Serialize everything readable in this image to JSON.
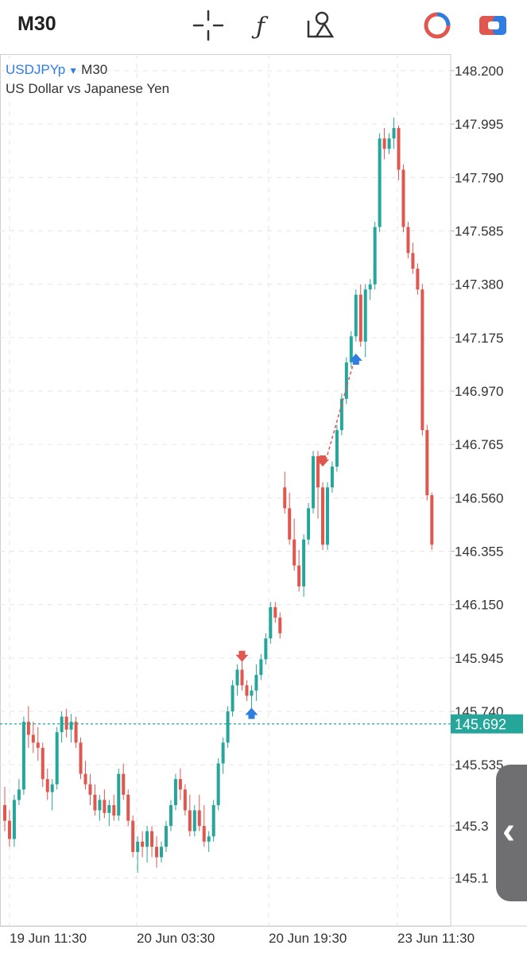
{
  "toolbar": {
    "timeframe": "M30",
    "icons": [
      "crosshair-icon",
      "function-icon",
      "objects-icon",
      "trading-icon",
      "switch-icon"
    ]
  },
  "header": {
    "symbol": "USDJPYp",
    "timeframe": "M30",
    "description": "US Dollar vs Japanese Yen"
  },
  "colors": {
    "bull": "#26a69a",
    "bear": "#e0574f",
    "buy_marker": "#2f7de1",
    "sell_marker": "#e0574f"
  },
  "chart_data": {
    "type": "candlestick",
    "symbol": "USDJPYp",
    "timeframe": "M30",
    "ylim": [
      145.05,
      148.25
    ],
    "y_ticks": [
      "148.200",
      "147.995",
      "147.790",
      "147.585",
      "147.380",
      "147.175",
      "146.970",
      "146.765",
      "146.560",
      "146.355",
      "146.150",
      "145.945",
      "145.740",
      "145.535",
      "145.3",
      "145.1"
    ],
    "x_labels": [
      "19 Jun 11:30",
      "20 Jun 03:30",
      "20 Jun 19:30",
      "23 Jun 11:30"
    ],
    "current_price": "145.692",
    "candles": [
      [
        145.38,
        145.45,
        145.28,
        145.32
      ],
      [
        145.32,
        145.36,
        145.22,
        145.25
      ],
      [
        145.25,
        145.42,
        145.22,
        145.4
      ],
      [
        145.4,
        145.48,
        145.38,
        145.44
      ],
      [
        145.44,
        145.72,
        145.42,
        145.7
      ],
      [
        145.7,
        145.76,
        145.6,
        145.65
      ],
      [
        145.65,
        145.7,
        145.58,
        145.62
      ],
      [
        145.62,
        145.68,
        145.55,
        145.6
      ],
      [
        145.6,
        145.62,
        145.45,
        145.48
      ],
      [
        145.48,
        145.52,
        145.4,
        145.43
      ],
      [
        145.43,
        145.48,
        145.36,
        145.46
      ],
      [
        145.46,
        145.68,
        145.44,
        145.66
      ],
      [
        145.66,
        145.74,
        145.62,
        145.72
      ],
      [
        145.72,
        145.75,
        145.64,
        145.67
      ],
      [
        145.67,
        145.73,
        145.62,
        145.7
      ],
      [
        145.7,
        145.72,
        145.6,
        145.62
      ],
      [
        145.62,
        145.64,
        145.48,
        145.5
      ],
      [
        145.5,
        145.55,
        145.44,
        145.46
      ],
      [
        145.46,
        145.5,
        145.38,
        145.42
      ],
      [
        145.42,
        145.46,
        145.34,
        145.36
      ],
      [
        145.36,
        145.42,
        145.32,
        145.4
      ],
      [
        145.4,
        145.44,
        145.33,
        145.35
      ],
      [
        145.35,
        145.4,
        145.3,
        145.38
      ],
      [
        145.38,
        145.42,
        145.32,
        145.34
      ],
      [
        145.34,
        145.52,
        145.32,
        145.5
      ],
      [
        145.5,
        145.54,
        145.4,
        145.42
      ],
      [
        145.42,
        145.44,
        145.3,
        145.32
      ],
      [
        145.32,
        145.34,
        145.18,
        145.2
      ],
      [
        145.2,
        145.26,
        145.12,
        145.24
      ],
      [
        145.24,
        145.28,
        145.18,
        145.22
      ],
      [
        145.22,
        145.3,
        145.16,
        145.28
      ],
      [
        145.28,
        145.3,
        145.18,
        145.22
      ],
      [
        145.22,
        145.26,
        145.14,
        145.18
      ],
      [
        145.18,
        145.24,
        145.16,
        145.22
      ],
      [
        145.22,
        145.32,
        145.2,
        145.3
      ],
      [
        145.3,
        145.4,
        145.28,
        145.38
      ],
      [
        145.38,
        145.5,
        145.36,
        145.48
      ],
      [
        145.48,
        145.52,
        145.4,
        145.44
      ],
      [
        145.44,
        145.46,
        145.34,
        145.36
      ],
      [
        145.36,
        145.42,
        145.26,
        145.28
      ],
      [
        145.28,
        145.38,
        145.26,
        145.36
      ],
      [
        145.36,
        145.42,
        145.28,
        145.3
      ],
      [
        145.3,
        145.38,
        145.22,
        145.24
      ],
      [
        145.24,
        145.28,
        145.2,
        145.26
      ],
      [
        145.26,
        145.4,
        145.24,
        145.38
      ],
      [
        145.38,
        145.56,
        145.36,
        145.54
      ],
      [
        145.54,
        145.64,
        145.5,
        145.62
      ],
      [
        145.62,
        145.76,
        145.6,
        145.74
      ],
      [
        145.74,
        145.86,
        145.72,
        145.84
      ],
      [
        145.84,
        145.92,
        145.8,
        145.9
      ],
      [
        145.9,
        145.94,
        145.82,
        145.84
      ],
      [
        145.84,
        145.86,
        145.78,
        145.8
      ],
      [
        145.8,
        145.84,
        145.74,
        145.82
      ],
      [
        145.82,
        145.92,
        145.78,
        145.88
      ],
      [
        145.88,
        145.96,
        145.86,
        145.94
      ],
      [
        145.94,
        146.04,
        145.92,
        146.02
      ],
      [
        146.02,
        146.16,
        146.0,
        146.14
      ],
      [
        146.14,
        146.16,
        146.08,
        146.1
      ],
      [
        146.1,
        146.12,
        146.02,
        146.04
      ],
      [
        146.6,
        146.66,
        146.5,
        146.52
      ],
      [
        146.52,
        146.58,
        146.38,
        146.4
      ],
      [
        146.4,
        146.48,
        146.28,
        146.3
      ],
      [
        146.3,
        146.36,
        146.2,
        146.22
      ],
      [
        146.22,
        146.42,
        146.18,
        146.4
      ],
      [
        146.4,
        146.54,
        146.38,
        146.52
      ],
      [
        146.52,
        146.74,
        146.5,
        146.72
      ],
      [
        146.72,
        146.74,
        146.48,
        146.6
      ],
      [
        146.6,
        146.62,
        146.36,
        146.38
      ],
      [
        146.38,
        146.62,
        146.36,
        146.6
      ],
      [
        146.6,
        146.7,
        146.58,
        146.68
      ],
      [
        146.68,
        146.84,
        146.66,
        146.82
      ],
      [
        146.82,
        146.96,
        146.8,
        146.94
      ],
      [
        146.94,
        147.1,
        146.92,
        147.08
      ],
      [
        147.08,
        147.2,
        147.06,
        147.18
      ],
      [
        147.18,
        147.36,
        147.16,
        147.34
      ],
      [
        147.34,
        147.38,
        147.14,
        147.16
      ],
      [
        147.16,
        147.38,
        147.1,
        147.36
      ],
      [
        147.36,
        147.4,
        147.32,
        147.38
      ],
      [
        147.38,
        147.62,
        147.36,
        147.6
      ],
      [
        147.6,
        147.96,
        147.58,
        147.94
      ],
      [
        147.94,
        147.98,
        147.86,
        147.9
      ],
      [
        147.9,
        147.96,
        147.88,
        147.94
      ],
      [
        147.94,
        148.02,
        147.9,
        147.98
      ],
      [
        147.98,
        147.99,
        147.78,
        147.82
      ],
      [
        147.82,
        147.84,
        147.58,
        147.6
      ],
      [
        147.6,
        147.62,
        147.48,
        147.5
      ],
      [
        147.5,
        147.54,
        147.42,
        147.44
      ],
      [
        147.44,
        147.46,
        147.34,
        147.36
      ],
      [
        147.36,
        147.38,
        146.8,
        146.82
      ],
      [
        146.82,
        146.84,
        146.55,
        146.57
      ],
      [
        146.57,
        146.58,
        146.36,
        146.38
      ]
    ],
    "trade_markers": [
      {
        "type": "sell",
        "price": 145.93,
        "candle": 50
      },
      {
        "type": "buy",
        "price": 145.76,
        "candle": 52
      },
      {
        "type": "sell",
        "price": 146.68,
        "candle": 67
      },
      {
        "type": "buy",
        "price": 147.12,
        "candle": 74
      }
    ]
  }
}
